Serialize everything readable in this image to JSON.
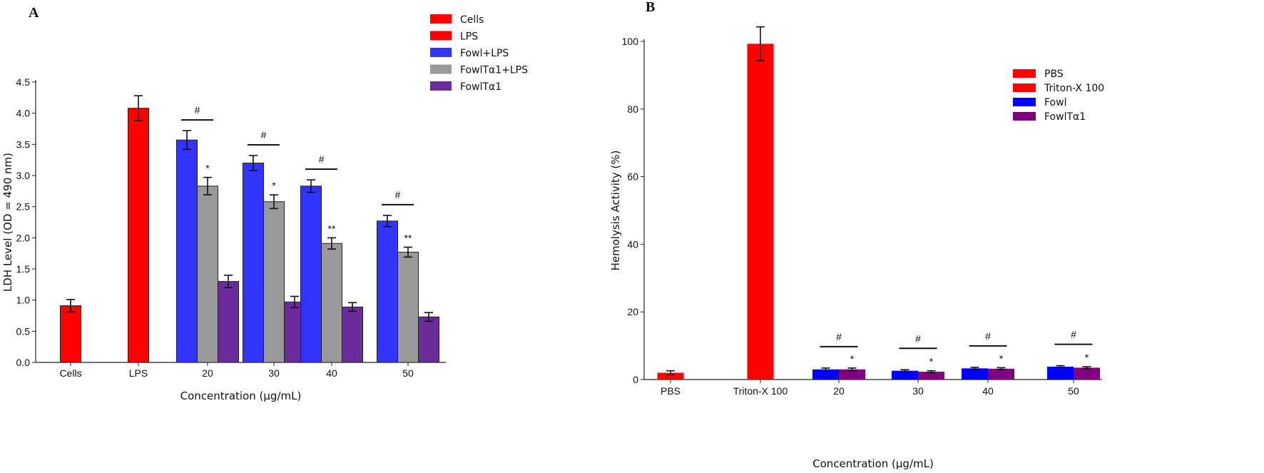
{
  "chart_data": [
    {
      "panel": "A",
      "type": "bar",
      "xlabel": "Concentration (μg/mL)",
      "ylabel": "LDH Level (OD = 490 nm)",
      "ylim": [
        0,
        4.5
      ],
      "yticks": [
        "0.0",
        "0.5",
        "1.0",
        "1.5",
        "2.0",
        "2.5",
        "3.0",
        "3.5",
        "4.0",
        "4.5"
      ],
      "categories": [
        "Cells",
        "LPS",
        "20",
        "30",
        "40",
        "50"
      ],
      "legend_position": "top-right",
      "series": [
        {
          "name": "Cells",
          "color": "#ff0000",
          "values": [
            0.91,
            null,
            null,
            null,
            null,
            null
          ],
          "errors": [
            0.1,
            null,
            null,
            null,
            null,
            null
          ]
        },
        {
          "name": "LPS",
          "color": "#ff0000",
          "values": [
            null,
            4.08,
            null,
            null,
            null,
            null
          ],
          "errors": [
            null,
            0.2,
            null,
            null,
            null,
            null
          ]
        },
        {
          "name": "Fowl+LPS",
          "color": "#3333ff",
          "values": [
            null,
            null,
            3.57,
            3.2,
            2.83,
            2.27
          ],
          "errors": [
            null,
            null,
            0.15,
            0.12,
            0.1,
            0.09
          ]
        },
        {
          "name": "FowlTα1+LPS",
          "color": "#999999",
          "values": [
            null,
            null,
            2.83,
            2.58,
            1.91,
            1.77
          ],
          "errors": [
            null,
            null,
            0.14,
            0.11,
            0.09,
            0.08
          ]
        },
        {
          "name": "FowlTα1",
          "color": "#6a2c9a",
          "values": [
            null,
            null,
            1.3,
            0.97,
            0.89,
            0.73
          ],
          "errors": [
            null,
            null,
            0.1,
            0.09,
            0.07,
            0.07
          ]
        }
      ],
      "annotations": [
        {
          "category": "20",
          "hash": "#",
          "star": "*"
        },
        {
          "category": "30",
          "hash": "#",
          "star": "*"
        },
        {
          "category": "40",
          "hash": "#",
          "star": "**"
        },
        {
          "category": "50",
          "hash": "#",
          "star": "**"
        }
      ]
    },
    {
      "panel": "B",
      "type": "bar",
      "xlabel": "Concentration (μg/mL)",
      "ylabel": "Hemolysis Activity (%)",
      "ylim": [
        0,
        100
      ],
      "yticks": [
        "0",
        "20",
        "40",
        "60",
        "80",
        "100"
      ],
      "categories": [
        "PBS",
        "Triton-X 100",
        "20",
        "30",
        "40",
        "50"
      ],
      "legend_position": "top-right",
      "series": [
        {
          "name": "PBS",
          "color": "#ff0000",
          "values": [
            2.0,
            null,
            null,
            null,
            null,
            null
          ],
          "errors": [
            0.6,
            null,
            null,
            null,
            null,
            null
          ]
        },
        {
          "name": "Triton-X 100",
          "color": "#ff0000",
          "values": [
            null,
            99.3,
            null,
            null,
            null,
            null
          ],
          "errors": [
            null,
            5.0,
            null,
            null,
            null,
            null
          ]
        },
        {
          "name": "Fowl",
          "color": "#0000ff",
          "values": [
            null,
            null,
            3.0,
            2.6,
            3.3,
            3.8
          ],
          "errors": [
            null,
            null,
            0.4,
            0.3,
            0.3,
            0.3
          ]
        },
        {
          "name": "FowlTα1",
          "color": "#800080",
          "values": [
            null,
            null,
            3.0,
            2.3,
            3.2,
            3.5
          ],
          "errors": [
            null,
            null,
            0.4,
            0.3,
            0.3,
            0.3
          ]
        }
      ],
      "annotations": [
        {
          "category": "20",
          "hash": "#",
          "star": "*"
        },
        {
          "category": "30",
          "hash": "#",
          "star": "*"
        },
        {
          "category": "40",
          "hash": "#",
          "star": "*"
        },
        {
          "category": "50",
          "hash": "#",
          "star": "*"
        }
      ]
    }
  ]
}
